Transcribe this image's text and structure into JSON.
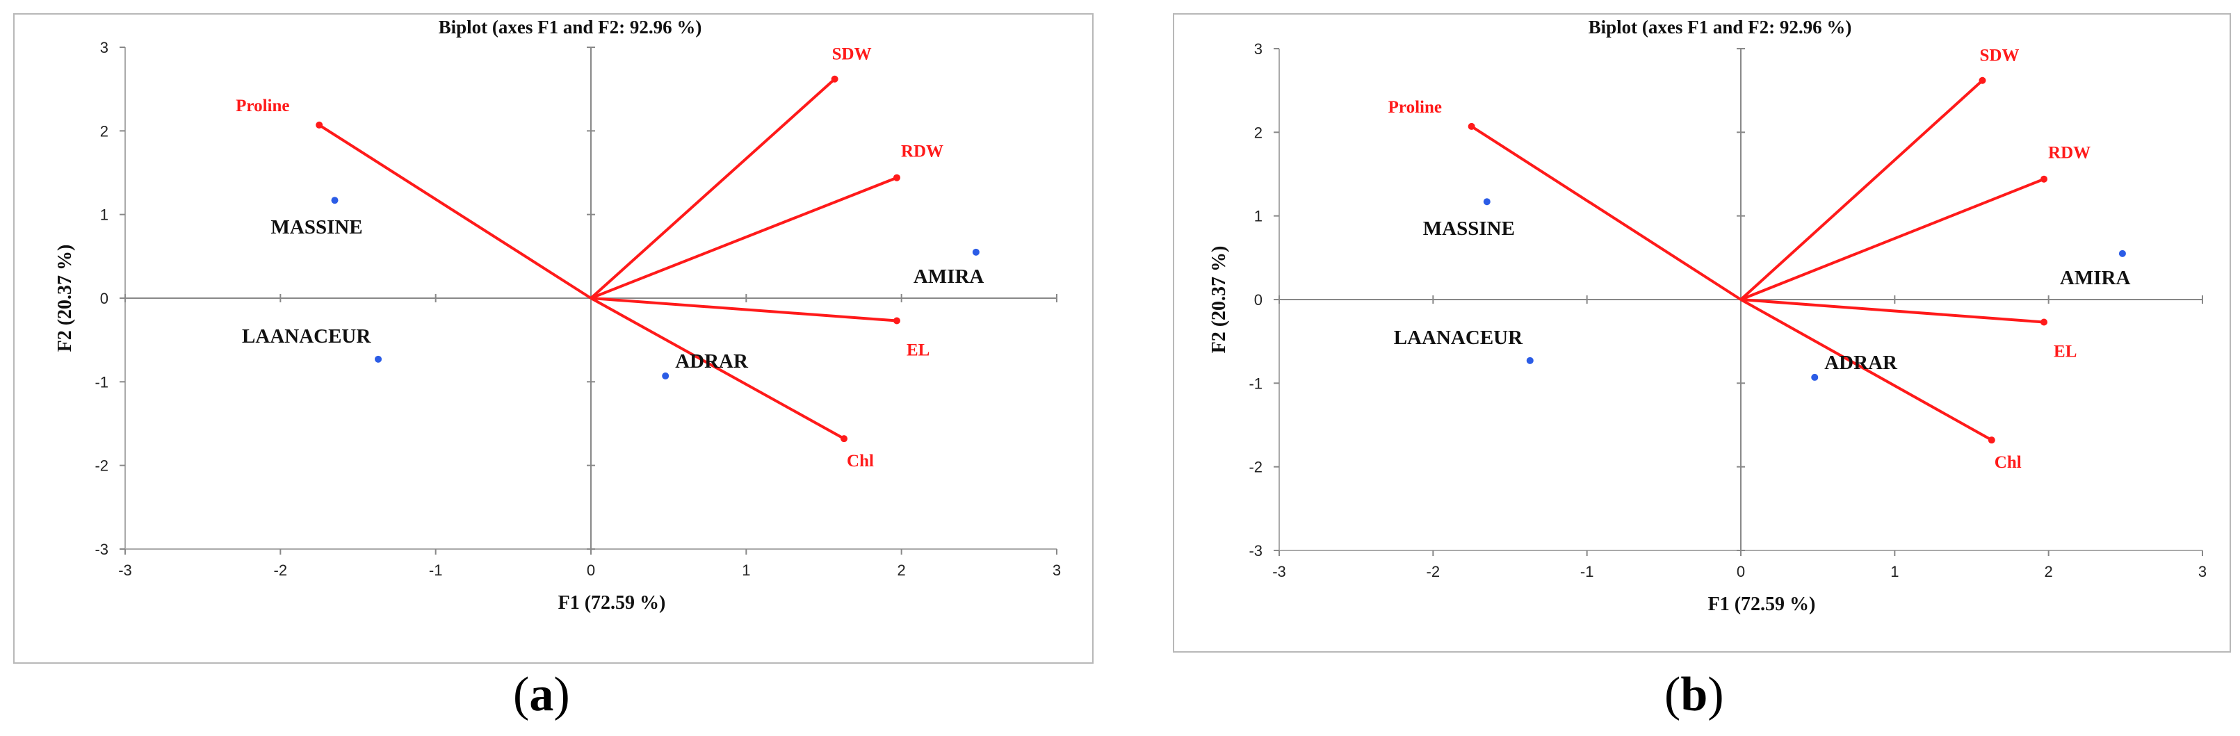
{
  "panels": [
    {
      "caption_open": "(",
      "caption_letter": "a",
      "caption_close": ")",
      "chart_data": {
        "type": "scatter",
        "title": "Biplot (axes F1 and F2: 92.96 %)",
        "xlabel": "F1 (72.59 %)",
        "ylabel": "F2 (20.37 %)",
        "xlim": [
          -3,
          3
        ],
        "ylim": [
          -3,
          3
        ],
        "xticks": [
          -3,
          -2,
          -1,
          0,
          1,
          2,
          3
        ],
        "yticks": [
          -3,
          -2,
          -1,
          0,
          1,
          2,
          3
        ],
        "grid": false,
        "observations": [
          {
            "label": "MASSINE",
            "x": -1.65,
            "y": 1.17
          },
          {
            "label": "LAANACEUR",
            "x": -1.37,
            "y": -0.73
          },
          {
            "label": "ADRAR",
            "x": 0.48,
            "y": -0.93
          },
          {
            "label": "AMIRA",
            "x": 2.48,
            "y": 0.55
          }
        ],
        "variables": [
          {
            "label": "SDW",
            "x": 1.57,
            "y": 2.62
          },
          {
            "label": "RDW",
            "x": 1.97,
            "y": 1.44
          },
          {
            "label": "Proline",
            "x": -1.75,
            "y": 2.07
          },
          {
            "label": "EL",
            "x": 1.97,
            "y": -0.27
          },
          {
            "label": "Chl",
            "x": 1.63,
            "y": -1.68
          }
        ],
        "colors": {
          "variables": "#ff1a1a",
          "observations": "#2b5ce6",
          "axes": "#888888"
        }
      }
    },
    {
      "caption_open": "(",
      "caption_letter": "b",
      "caption_close": ")",
      "chart_data": {
        "type": "scatter",
        "title": "Biplot (axes F1 and F2: 92.96 %)",
        "xlabel": "F1 (72.59 %)",
        "ylabel": "F2 (20.37 %)",
        "xlim": [
          -3,
          3
        ],
        "ylim": [
          -3,
          3
        ],
        "xticks": [
          -3,
          -2,
          -1,
          0,
          1,
          2,
          3
        ],
        "yticks": [
          -3,
          -2,
          -1,
          0,
          1,
          2,
          3
        ],
        "grid": false,
        "observations": [
          {
            "label": "MASSINE",
            "x": -1.65,
            "y": 1.17
          },
          {
            "label": "LAANACEUR",
            "x": -1.37,
            "y": -0.73
          },
          {
            "label": "ADRAR",
            "x": 0.48,
            "y": -0.93
          },
          {
            "label": "AMIRA",
            "x": 2.48,
            "y": 0.55
          }
        ],
        "variables": [
          {
            "label": "SDW",
            "x": 1.57,
            "y": 2.62
          },
          {
            "label": "RDW",
            "x": 1.97,
            "y": 1.44
          },
          {
            "label": "Proline",
            "x": -1.75,
            "y": 2.07
          },
          {
            "label": "EL",
            "x": 1.97,
            "y": -0.27
          },
          {
            "label": "Chl",
            "x": 1.63,
            "y": -1.68
          }
        ],
        "colors": {
          "variables": "#ff1a1a",
          "observations": "#2b5ce6",
          "axes": "#888888"
        }
      }
    }
  ]
}
